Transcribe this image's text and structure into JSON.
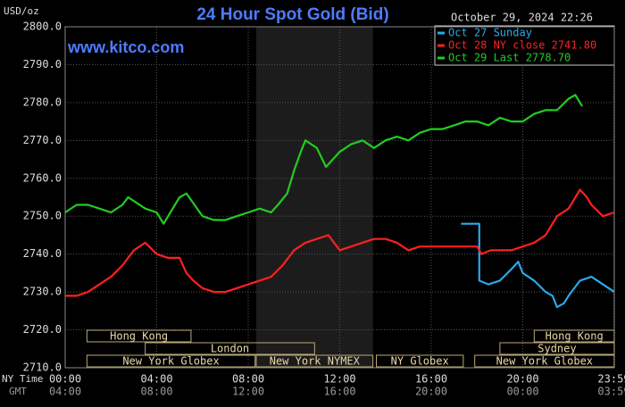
{
  "chart_data": {
    "type": "line",
    "title": "24 Hour Spot Gold (Bid)",
    "timestamp": "October 29, 2024 22:26",
    "y_label": "USD/oz",
    "watermark": "www.kitco.com",
    "x_row_labels": [
      "NY Time",
      "GMT"
    ],
    "xlim": [
      0,
      24
    ],
    "ylim": [
      2710,
      2800
    ],
    "xticks": [
      {
        "value": 0,
        "label": "00:00"
      },
      {
        "value": 4,
        "label": "04:00"
      },
      {
        "value": 8,
        "label": "08:00"
      },
      {
        "value": 12,
        "label": "12:00"
      },
      {
        "value": 16,
        "label": "16:00"
      },
      {
        "value": 20,
        "label": "20:00"
      },
      {
        "value": 23.98,
        "label": "23:59"
      }
    ],
    "xticks_gmt": [
      "04:00",
      "08:00",
      "12:00",
      "16:00",
      "20:00",
      "00:00",
      "03:59"
    ],
    "yticks": [
      {
        "value": 2710,
        "label": "2710.0"
      },
      {
        "value": 2720,
        "label": "2720.0"
      },
      {
        "value": 2730,
        "label": "2730.0"
      },
      {
        "value": 2740,
        "label": "2740.0"
      },
      {
        "value": 2750,
        "label": "2750.0"
      },
      {
        "value": 2760,
        "label": "2760.0"
      },
      {
        "value": 2770,
        "label": "2770.0"
      },
      {
        "value": 2780,
        "label": "2780.0"
      },
      {
        "value": 2790,
        "label": "2790.0"
      },
      {
        "value": 2800,
        "label": "2800.0"
      }
    ],
    "grid": true,
    "series": [
      {
        "name": "Oct 27 Sunday",
        "color": "#2aa9e8",
        "x": [
          17.3,
          18.1,
          18.1,
          18.5,
          19,
          19.5,
          19.8,
          20,
          20.5,
          21,
          21.3,
          21.5,
          21.8,
          22,
          22.5,
          23,
          23.5,
          24
        ],
        "values": [
          2748,
          2748,
          2733,
          2732,
          2733,
          2736,
          2738,
          2735,
          2733,
          2730,
          2729,
          2726,
          2727,
          2729,
          2733,
          2734,
          2732,
          2730
        ]
      },
      {
        "name": "Oct 28 NY close 2741.80",
        "color": "#ff2020",
        "x": [
          0,
          0.5,
          1,
          1.5,
          2,
          2.5,
          3,
          3.5,
          4,
          4.5,
          5,
          5.3,
          5.6,
          6,
          6.5,
          7,
          7.5,
          8,
          8.5,
          9,
          9.5,
          10,
          10.5,
          11,
          11.5,
          12,
          12.5,
          13,
          13.5,
          14,
          14.5,
          15,
          15.5,
          16,
          16.5,
          17,
          17.5,
          18,
          18.2,
          18.6,
          19,
          19.5,
          20,
          20.5,
          21,
          21.5,
          22,
          22.5,
          22.8,
          23,
          23.5,
          24
        ],
        "values": [
          2729,
          2729,
          2730,
          2732,
          2734,
          2737,
          2741,
          2743,
          2740,
          2739,
          2739,
          2735,
          2733,
          2731,
          2730,
          2730,
          2731,
          2732,
          2733,
          2734,
          2737,
          2741,
          2743,
          2744,
          2745,
          2741,
          2742,
          2743,
          2744,
          2744,
          2743,
          2741,
          2742,
          2742,
          2742,
          2742,
          2742,
          2742,
          2740,
          2741,
          2741,
          2741,
          2742,
          2743,
          2745,
          2750,
          2752,
          2757,
          2755,
          2753,
          2750,
          2751
        ]
      },
      {
        "name": "Oct 29 Last 2778.70",
        "color": "#22cc22",
        "x": [
          0,
          0.5,
          1,
          1.5,
          2,
          2.5,
          2.75,
          3.5,
          4,
          4.3,
          4.7,
          5,
          5.3,
          6,
          6.5,
          7,
          7.5,
          8,
          8.5,
          9,
          9.3,
          9.7,
          10,
          10.3,
          10.5,
          11,
          11.4,
          12,
          12.5,
          13,
          13.5,
          14,
          14.5,
          15,
          15.5,
          16,
          16.5,
          17,
          17.5,
          18,
          18.5,
          19,
          19.5,
          20,
          20.5,
          21,
          21.5,
          22,
          22.3,
          22.6
        ],
        "values": [
          2751,
          2753,
          2753,
          2752,
          2751,
          2753,
          2755,
          2752,
          2751,
          2748,
          2752,
          2755,
          2756,
          2750,
          2749,
          2749,
          2750,
          2751,
          2752,
          2751,
          2753,
          2756,
          2762,
          2767,
          2770,
          2768,
          2763,
          2767,
          2769,
          2770,
          2768,
          2770,
          2771,
          2770,
          2772,
          2773,
          2773,
          2774,
          2775,
          2775,
          2774,
          2776,
          2775,
          2775,
          2777,
          2778,
          2778,
          2781,
          2782,
          2779
        ]
      }
    ],
    "sessions": [
      {
        "label": "Hong Kong",
        "start": 0.95,
        "end": 5.5,
        "row": 0
      },
      {
        "label": "Hong Kong",
        "start": 20.5,
        "end": 24,
        "row": 0
      },
      {
        "label": "London",
        "start": 3.5,
        "end": 10.9,
        "row": 1
      },
      {
        "label": "Sydney",
        "start": 19,
        "end": 24,
        "row": 1
      },
      {
        "label": "New York Globex",
        "start": 0.95,
        "end": 8.3,
        "row": 2
      },
      {
        "label": "New York NYMEX",
        "start": 8.35,
        "end": 13.45,
        "row": 2,
        "shaded": true
      },
      {
        "label": "NY Globex",
        "start": 13.6,
        "end": 17.4,
        "row": 2
      },
      {
        "label": "New York Globex",
        "start": 17.9,
        "end": 24,
        "row": 2
      }
    ]
  }
}
